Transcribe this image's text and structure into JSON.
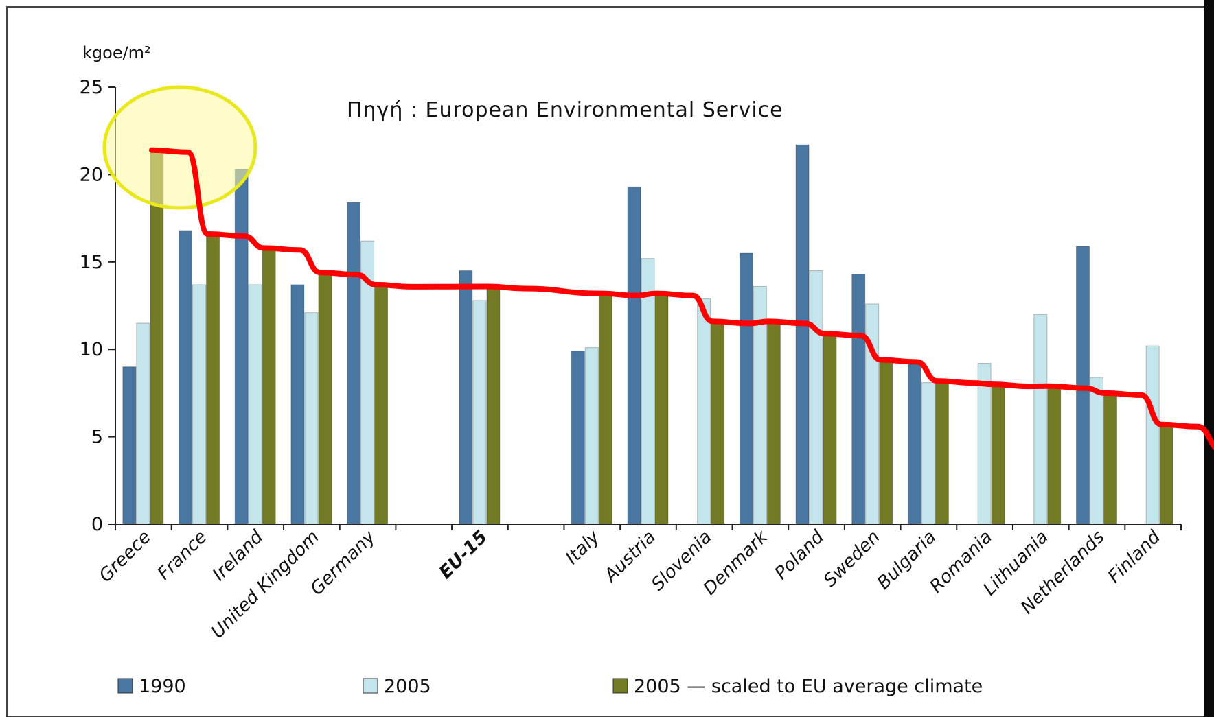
{
  "chart_data": {
    "type": "bar",
    "title": "",
    "source_note": "Πηγή : European Environmental Service",
    "ylabel": "kgoe/m²",
    "xlabel": "",
    "ylim": [
      0,
      25
    ],
    "yticks": [
      0,
      5,
      10,
      15,
      20,
      25
    ],
    "grid": false,
    "legend_position": "bottom",
    "categories": [
      "Greece",
      "France",
      "Ireland",
      "United Kingdom",
      "Germany",
      "",
      "EU-15",
      "",
      "Italy",
      "Austria",
      "Slovenia",
      "Denmark",
      "Poland",
      "Sweden",
      "Bulgaria",
      "Romania",
      "Lithuania",
      "Netherlands",
      "Finland"
    ],
    "bold_categories": [
      "EU-15"
    ],
    "series": [
      {
        "name": "1990",
        "color": "#4a76a2",
        "values": [
          9.0,
          16.8,
          20.3,
          13.7,
          18.4,
          null,
          14.5,
          null,
          9.9,
          19.3,
          null,
          15.5,
          21.7,
          14.3,
          9.4,
          null,
          null,
          15.9,
          null
        ]
      },
      {
        "name": "2005",
        "color": "#c5e5ed",
        "values": [
          11.5,
          13.7,
          13.7,
          12.1,
          16.2,
          null,
          12.8,
          null,
          10.1,
          15.2,
          12.9,
          13.6,
          14.5,
          12.6,
          8.1,
          9.2,
          12.0,
          8.4,
          10.2
        ]
      },
      {
        "name": "2005 — scaled to EU average climate",
        "color": "#727a26",
        "values": [
          21.4,
          16.6,
          15.8,
          14.4,
          13.7,
          null,
          13.6,
          null,
          13.2,
          13.2,
          11.6,
          11.6,
          10.9,
          9.4,
          8.2,
          8.0,
          7.9,
          7.5,
          5.7
        ]
      }
    ],
    "annotation": {
      "type": "hand-drawn trend line",
      "color": "#ff0000",
      "highlight": "Greece",
      "highlight_color": "#fff9a0"
    }
  }
}
